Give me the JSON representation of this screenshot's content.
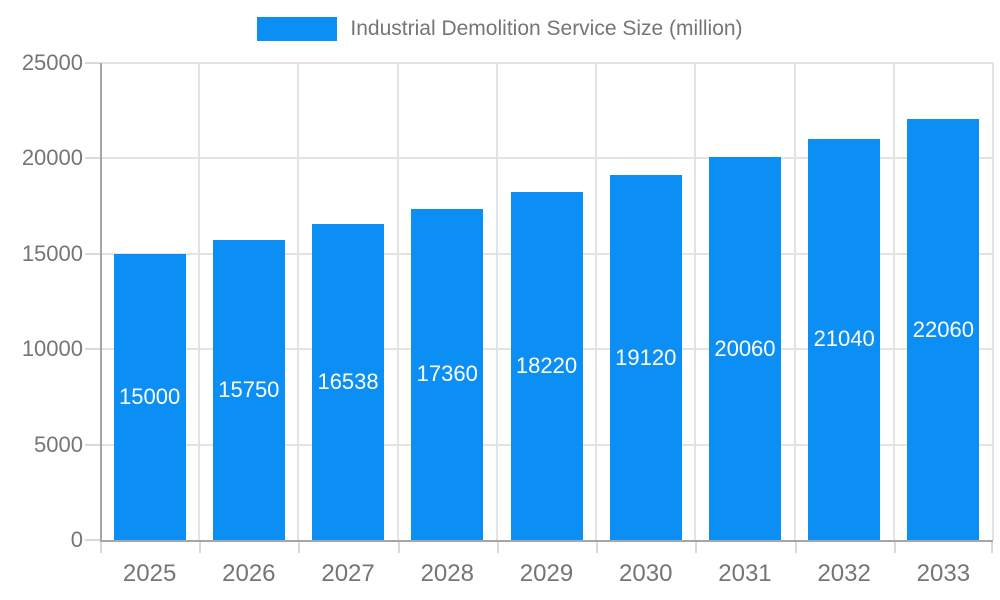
{
  "legend": {
    "label": "Industrial Demolition Service Size (million)"
  },
  "chart_data": {
    "type": "bar",
    "title": "Industrial Demolition Service Size (million)",
    "categories": [
      "2025",
      "2026",
      "2027",
      "2028",
      "2029",
      "2030",
      "2031",
      "2032",
      "2033"
    ],
    "series": [
      {
        "name": "Industrial Demolition Service Size (million)",
        "values": [
          15000,
          15750,
          16538,
          17360,
          18220,
          19120,
          20060,
          21040,
          22060
        ]
      }
    ],
    "value_labels_inside_bars": true,
    "xlabel": "",
    "ylabel": "",
    "ylim": [
      0,
      25000
    ],
    "yticks": [
      0,
      5000,
      10000,
      15000,
      20000,
      25000
    ],
    "grid": true,
    "legend_position": "top"
  },
  "colors": {
    "bar": "#0b8ff5",
    "bar_value_text": "#ffffff",
    "axis_line": "#a6a6a6",
    "grid_line": "#e3e3e3",
    "tick": "#d9d9d9",
    "axis_text": "#757575",
    "legend_text": "#757575",
    "background": "#ffffff"
  }
}
